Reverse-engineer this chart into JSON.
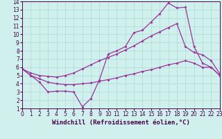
{
  "background_color": "#d0f0ee",
  "grid_color": "#b0d8d4",
  "line_color": "#993399",
  "xlim": [
    0,
    23
  ],
  "ylim": [
    1,
    14
  ],
  "xticks": [
    0,
    1,
    2,
    3,
    4,
    5,
    6,
    7,
    8,
    9,
    10,
    11,
    12,
    13,
    14,
    15,
    16,
    17,
    18,
    19,
    20,
    21,
    22,
    23
  ],
  "yticks": [
    1,
    2,
    3,
    4,
    5,
    6,
    7,
    8,
    9,
    10,
    11,
    12,
    13,
    14
  ],
  "xlabel": "Windchill (Refroidissement éolien,°C)",
  "line1_x": [
    0,
    1,
    2,
    3,
    4,
    5,
    6,
    7,
    8,
    9,
    10,
    11,
    12,
    13,
    14,
    15,
    16,
    17,
    18,
    19,
    20,
    21,
    22,
    23
  ],
  "line1_y": [
    5.8,
    5.0,
    4.2,
    3.0,
    3.1,
    3.1,
    3.0,
    1.2,
    2.2,
    4.5,
    7.6,
    8.0,
    8.5,
    10.2,
    10.5,
    11.5,
    12.5,
    13.8,
    13.2,
    13.3,
    8.5,
    6.5,
    6.0,
    5.0
  ],
  "line2_x": [
    0,
    1,
    2,
    3,
    4,
    5,
    6,
    7,
    8,
    9,
    10,
    11,
    12,
    13,
    14,
    15,
    16,
    17,
    18,
    19,
    20,
    21,
    22,
    23
  ],
  "line2_y": [
    5.8,
    5.3,
    5.0,
    4.9,
    4.8,
    5.0,
    5.3,
    5.8,
    6.3,
    6.8,
    7.2,
    7.6,
    8.1,
    8.6,
    9.2,
    9.8,
    10.3,
    10.8,
    11.3,
    8.5,
    7.8,
    7.5,
    6.8,
    5.2
  ],
  "line3_x": [
    0,
    1,
    2,
    3,
    4,
    5,
    6,
    7,
    8,
    9,
    10,
    11,
    12,
    13,
    14,
    15,
    16,
    17,
    18,
    19,
    20,
    21,
    22,
    23
  ],
  "line3_y": [
    5.8,
    5.0,
    4.6,
    4.2,
    4.0,
    3.9,
    3.9,
    4.0,
    4.1,
    4.3,
    4.5,
    4.7,
    5.0,
    5.2,
    5.5,
    5.7,
    6.0,
    6.3,
    6.5,
    6.8,
    6.5,
    6.0,
    6.0,
    5.0
  ],
  "tick_fontsize": 5.5,
  "xlabel_fontsize": 6.5,
  "linewidth": 0.9,
  "markersize": 2.0
}
